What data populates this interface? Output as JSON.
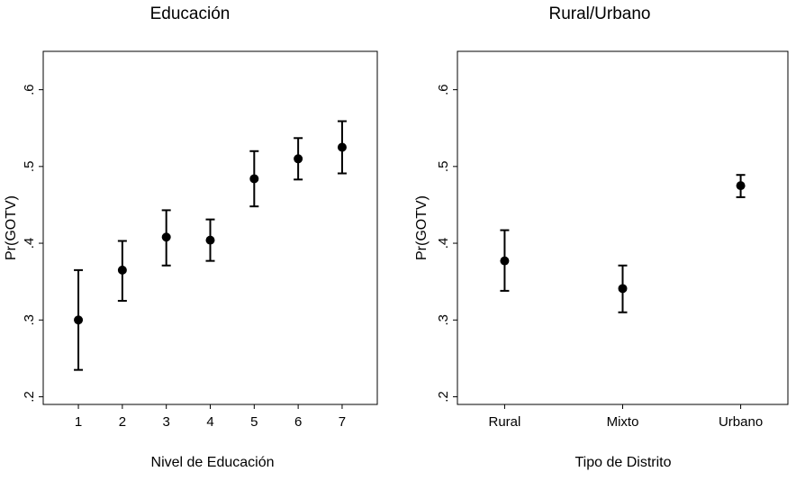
{
  "chart_data": [
    {
      "type": "scatter",
      "title": "Educación",
      "xlabel": "Nivel de Educación",
      "ylabel": "Pr(GOTV)",
      "categories": [
        "1",
        "2",
        "3",
        "4",
        "5",
        "6",
        "7"
      ],
      "values": [
        0.3,
        0.365,
        0.408,
        0.404,
        0.484,
        0.51,
        0.525
      ],
      "lower": [
        0.235,
        0.325,
        0.371,
        0.377,
        0.448,
        0.483,
        0.491
      ],
      "upper": [
        0.365,
        0.403,
        0.443,
        0.431,
        0.52,
        0.537,
        0.559
      ],
      "yticks": [
        0.2,
        0.3,
        0.4,
        0.5,
        0.6
      ],
      "ytick_labels": [
        ".2",
        ".3",
        ".4",
        ".5",
        ".6"
      ],
      "ylim": [
        0.19,
        0.65
      ],
      "xlim": [
        0.2,
        7.8
      ],
      "grid": false
    },
    {
      "type": "scatter",
      "title": "Rural/Urbano",
      "xlabel": "Tipo de Distrito",
      "ylabel": "Pr(GOTV)",
      "categories": [
        "Rural",
        "Mixto",
        "Urbano"
      ],
      "values": [
        0.377,
        0.341,
        0.475
      ],
      "lower": [
        0.338,
        0.31,
        0.46
      ],
      "upper": [
        0.417,
        0.371,
        0.489
      ],
      "yticks": [
        0.2,
        0.3,
        0.4,
        0.5,
        0.6
      ],
      "ytick_labels": [
        ".2",
        ".3",
        ".4",
        ".5",
        ".6"
      ],
      "ylim": [
        0.19,
        0.65
      ],
      "xlim": [
        0.6,
        3.4
      ],
      "grid": false
    }
  ]
}
